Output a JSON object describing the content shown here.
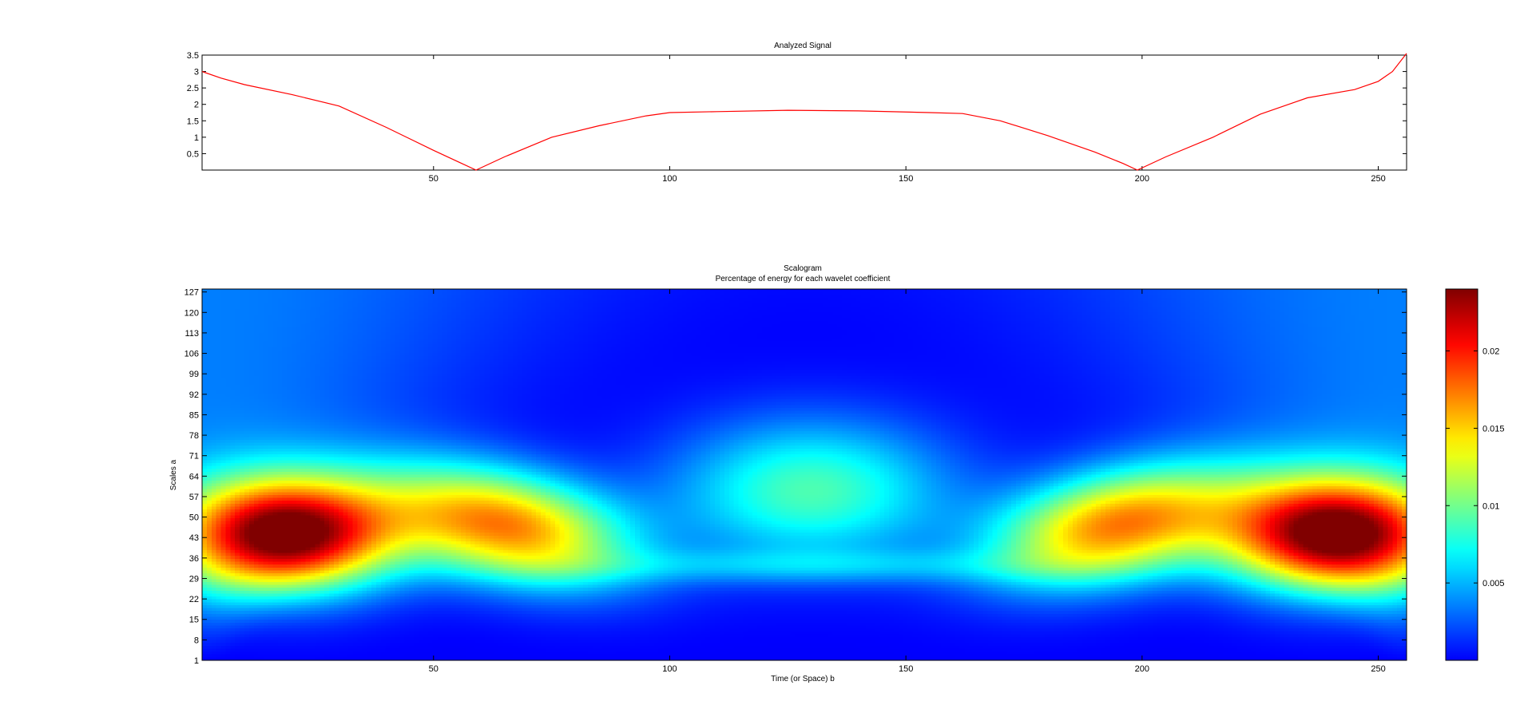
{
  "chart_data": [
    {
      "type": "line",
      "title": "Analyzed Signal",
      "xlabel": "",
      "ylabel": "",
      "xlim": [
        1,
        256
      ],
      "ylim": [
        0,
        3.5
      ],
      "x_ticks": [
        50,
        100,
        150,
        200,
        250
      ],
      "y_ticks": [
        0.5,
        1,
        1.5,
        2,
        2.5,
        3,
        3.5
      ],
      "grid": false,
      "line_color": "#ff0000",
      "series": [
        {
          "x": [
            1,
            5,
            10,
            20,
            30,
            40,
            50,
            56,
            59,
            65,
            75,
            85,
            95,
            100,
            110,
            125,
            140,
            155,
            162,
            170,
            180,
            190,
            196,
            199,
            205,
            215,
            225,
            235,
            245,
            250,
            253,
            256
          ],
          "values": [
            3.0,
            2.8,
            2.6,
            2.3,
            1.95,
            1.3,
            0.6,
            0.2,
            0.0,
            0.4,
            1.0,
            1.35,
            1.65,
            1.75,
            1.78,
            1.82,
            1.8,
            1.75,
            1.72,
            1.5,
            1.05,
            0.55,
            0.2,
            0.0,
            0.4,
            1.0,
            1.7,
            2.2,
            2.45,
            2.7,
            3.0,
            3.55
          ]
        }
      ]
    },
    {
      "type": "heatmap",
      "title": "Scalogram",
      "subtitle": "Percentage of energy for each wavelet coefficient",
      "xlabel": "Time (or Space) b",
      "ylabel": "Scales a",
      "xlim": [
        1,
        256
      ],
      "ylim": [
        1,
        128
      ],
      "x_ticks": [
        50,
        100,
        150,
        200,
        250
      ],
      "y_ticks": [
        1,
        8,
        15,
        22,
        29,
        36,
        43,
        50,
        57,
        64,
        71,
        78,
        85,
        92,
        99,
        106,
        113,
        120,
        127
      ],
      "colormap": "jet",
      "color_range": [
        0,
        0.024
      ],
      "colorbar_ticks": [
        0.005,
        0.01,
        0.015,
        0.02
      ],
      "colorbar_labels": [
        "0.005",
        "0.01",
        "0.015",
        "0.02"
      ],
      "blobs": [
        {
          "b": 19,
          "a": 44,
          "peak": 0.024
        },
        {
          "b": 65,
          "a": 47,
          "peak": 0.017
        },
        {
          "b": 130,
          "a": 59,
          "peak": 0.009
        },
        {
          "b": 195,
          "a": 47,
          "peak": 0.017
        },
        {
          "b": 241,
          "a": 44,
          "peak": 0.024
        }
      ]
    }
  ],
  "labels": {
    "x_tick_labels": [
      "50",
      "100",
      "150",
      "200",
      "250"
    ],
    "top_y_tick_labels": [
      "0.5",
      "1",
      "1.5",
      "2",
      "2.5",
      "3",
      "3.5"
    ],
    "bottom_y_tick_labels": [
      "1",
      "8",
      "15",
      "22",
      "29",
      "36",
      "43",
      "50",
      "57",
      "64",
      "71",
      "78",
      "85",
      "92",
      "99",
      "106",
      "113",
      "120",
      "127"
    ]
  }
}
